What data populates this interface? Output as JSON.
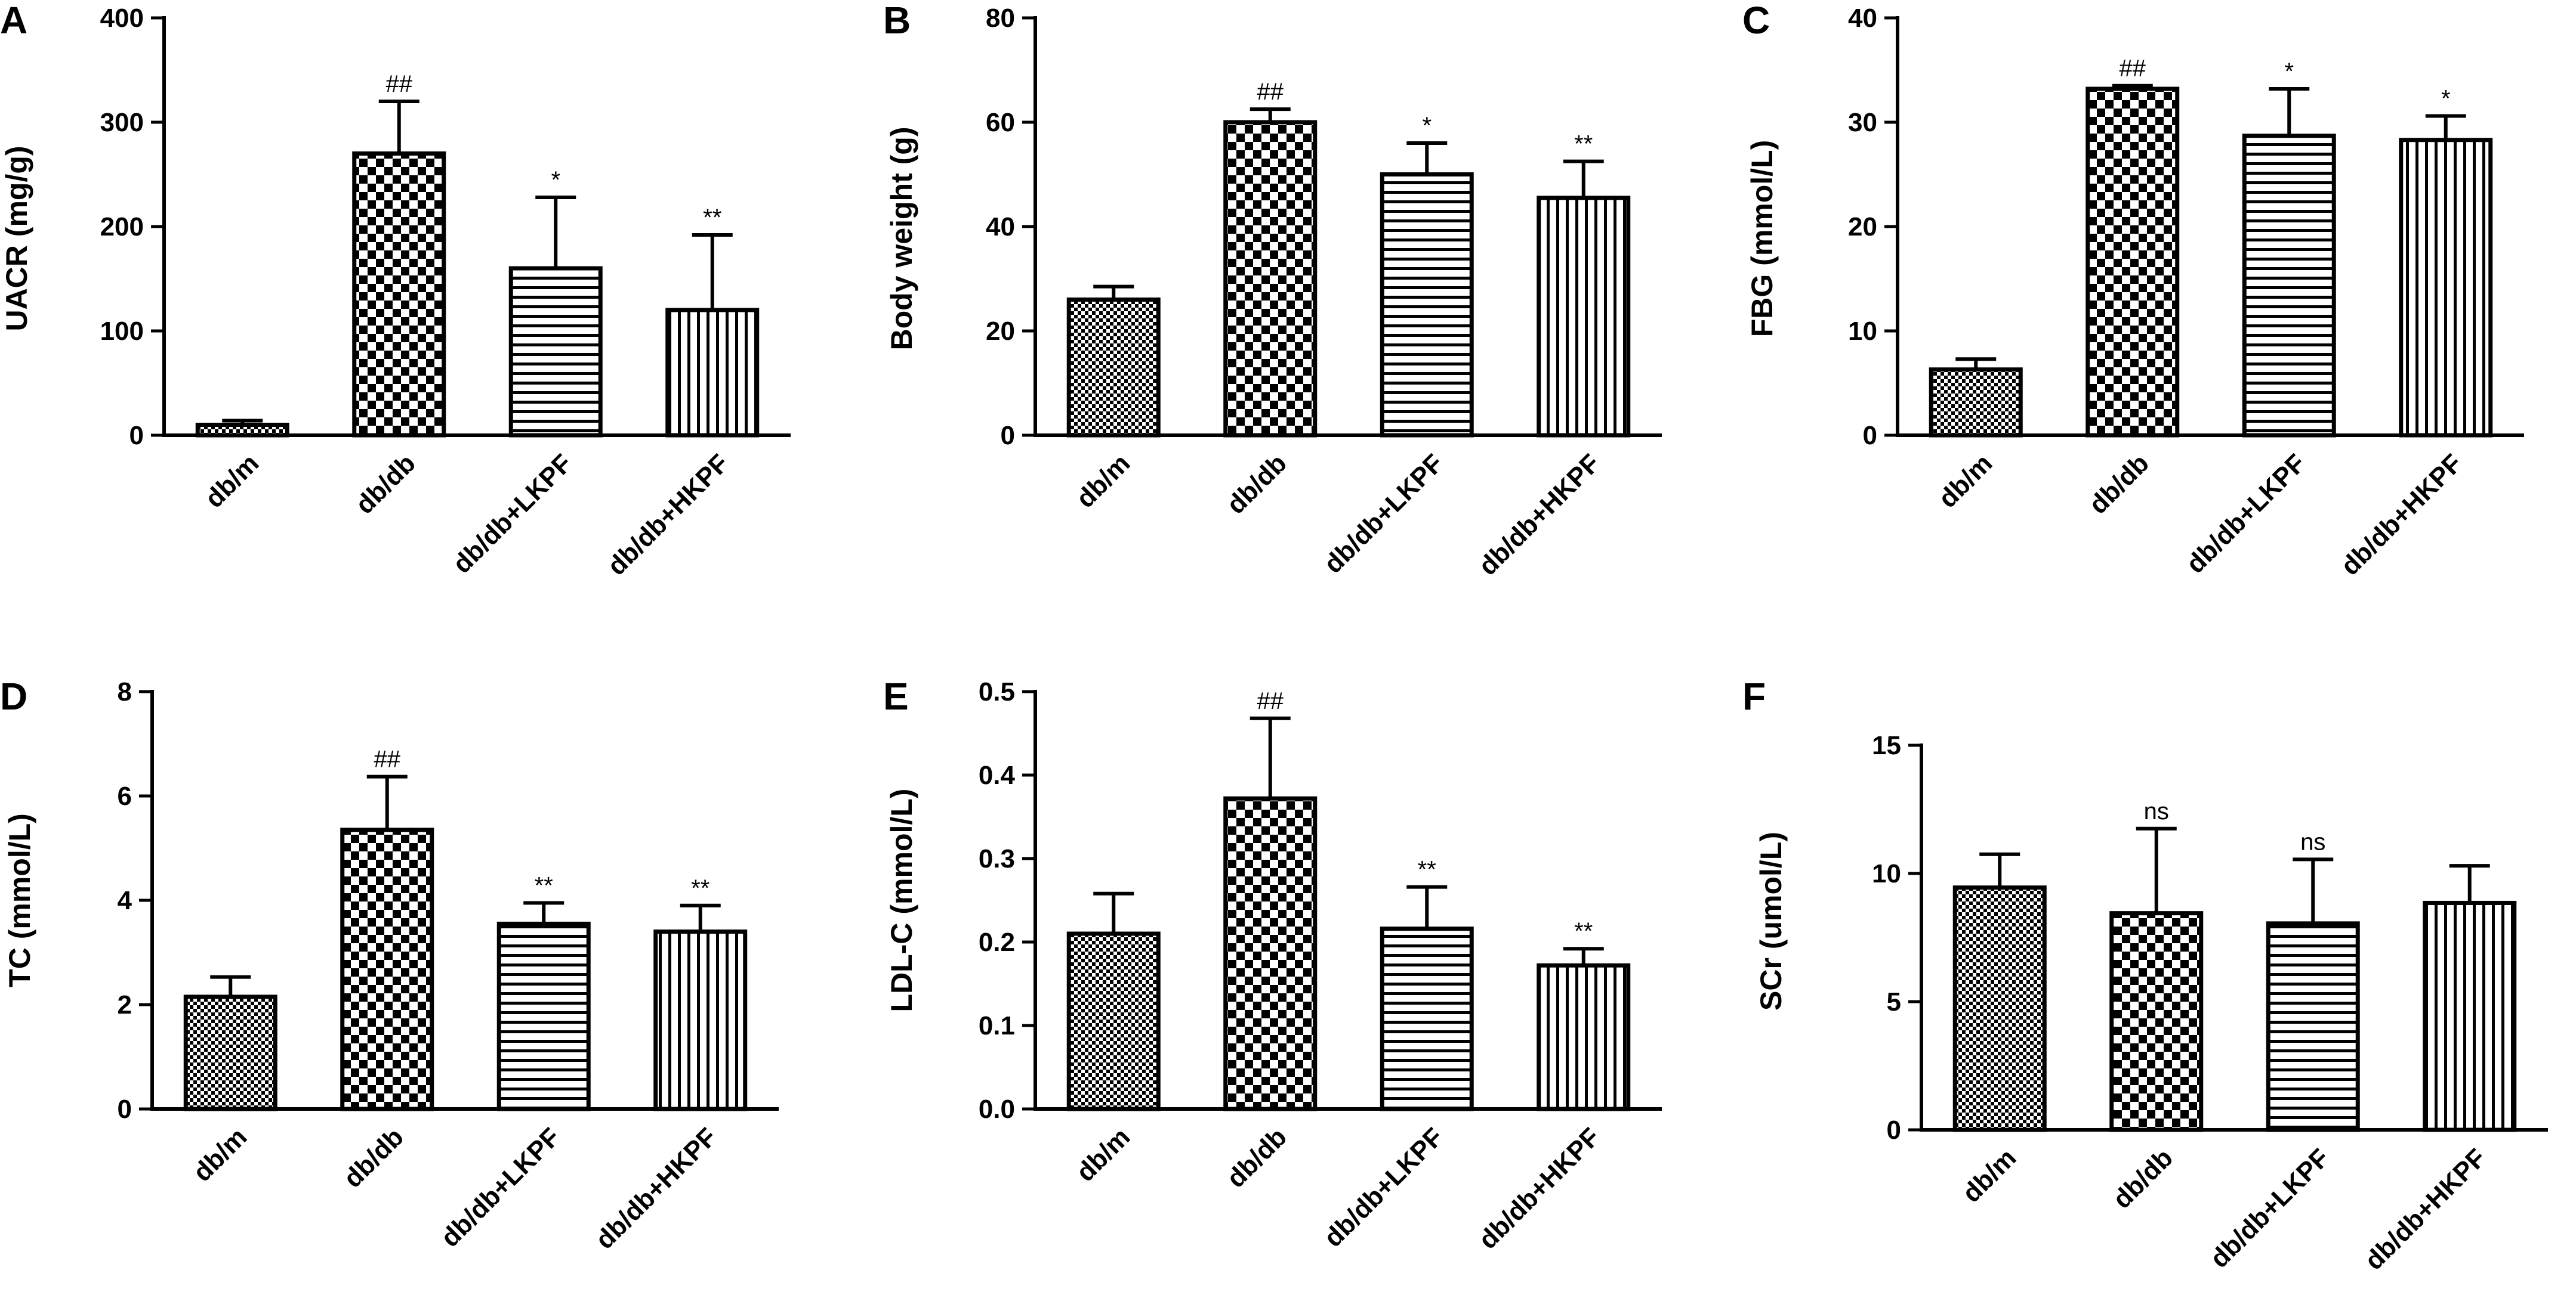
{
  "chart_data": [
    {
      "panel": "A",
      "type": "bar",
      "categories": [
        "db/m",
        "db/db",
        "db/db+LKPF",
        "db/db+HKPF"
      ],
      "values": [
        10,
        270,
        160,
        120
      ],
      "errors": [
        4,
        50,
        68,
        72
      ],
      "significance": [
        "",
        "##",
        "*",
        "**"
      ],
      "ylabel": "UACR (mg/g)",
      "ylim": [
        0,
        400
      ],
      "ticks": [
        0,
        100,
        200,
        300,
        400
      ],
      "tick_labels": [
        "0",
        "100",
        "200",
        "300",
        "400"
      ]
    },
    {
      "panel": "B",
      "type": "bar",
      "categories": [
        "db/m",
        "db/db",
        "db/db+LKPF",
        "db/db+HKPF"
      ],
      "values": [
        26,
        60,
        50,
        45.5
      ],
      "errors": [
        2.5,
        2.5,
        6,
        7
      ],
      "significance": [
        "",
        "##",
        "*",
        "**"
      ],
      "ylabel": "Body weight (g)",
      "ylim": [
        0,
        80
      ],
      "ticks": [
        0,
        20,
        40,
        60,
        80
      ],
      "tick_labels": [
        "0",
        "20",
        "40",
        "60",
        "80"
      ]
    },
    {
      "panel": "C",
      "type": "bar",
      "categories": [
        "db/m",
        "db/db",
        "db/db+LKPF",
        "db/db+HKPF"
      ],
      "values": [
        6.3,
        33.2,
        28.7,
        28.3
      ],
      "errors": [
        1,
        0.3,
        4.5,
        2.3
      ],
      "significance": [
        "",
        "##",
        "*",
        "*"
      ],
      "ylabel": "FBG (mmol/L)",
      "ylim": [
        0,
        40
      ],
      "ticks": [
        0,
        10,
        20,
        30,
        40
      ],
      "tick_labels": [
        "0",
        "10",
        "20",
        "30",
        "40"
      ]
    },
    {
      "panel": "D",
      "type": "bar",
      "categories": [
        "db/m",
        "db/db",
        "db/db+LKPF",
        "db/db+HKPF"
      ],
      "values": [
        2.15,
        5.35,
        3.55,
        3.4
      ],
      "errors": [
        0.38,
        1.02,
        0.4,
        0.5
      ],
      "significance": [
        "",
        "##",
        "**",
        "**"
      ],
      "ylabel": "TC (mmol/L)",
      "ylim": [
        0,
        8
      ],
      "ticks": [
        0,
        2,
        4,
        6,
        8
      ],
      "tick_labels": [
        "0",
        "2",
        "4",
        "6",
        "8"
      ]
    },
    {
      "panel": "E",
      "type": "bar",
      "categories": [
        "db/m",
        "db/db",
        "db/db+LKPF",
        "db/db+HKPF"
      ],
      "values": [
        0.21,
        0.372,
        0.216,
        0.172
      ],
      "errors": [
        0.048,
        0.096,
        0.05,
        0.02
      ],
      "significance": [
        "",
        "##",
        "**",
        "**"
      ],
      "ylabel": "LDL-C (mmol/L)",
      "ylim": [
        0,
        0.5
      ],
      "ticks": [
        0,
        0.1,
        0.2,
        0.3,
        0.4,
        0.5
      ],
      "tick_labels": [
        "0.0",
        "0.1",
        "0.2",
        "0.3",
        "0.4",
        "0.5"
      ]
    },
    {
      "panel": "F",
      "type": "bar",
      "categories": [
        "db/m",
        "db/db",
        "db/db+LKPF",
        "db/db+HKPF"
      ],
      "values": [
        9.45,
        8.45,
        8.05,
        8.85
      ],
      "errors": [
        1.3,
        3.3,
        2.5,
        1.45
      ],
      "significance": [
        "",
        "ns",
        "ns",
        ""
      ],
      "ylabel": "SCr (umol/L)",
      "ylim": [
        0,
        15
      ],
      "ticks": [
        0,
        5,
        10,
        15
      ],
      "tick_labels": [
        "0",
        "5",
        "10",
        "15"
      ]
    }
  ],
  "colors": {
    "ink": "#000000",
    "background": "#ffffff"
  },
  "fill_patterns": [
    "fine-checker",
    "coarse-checker",
    "horizontal-stripes",
    "vertical-stripes"
  ]
}
